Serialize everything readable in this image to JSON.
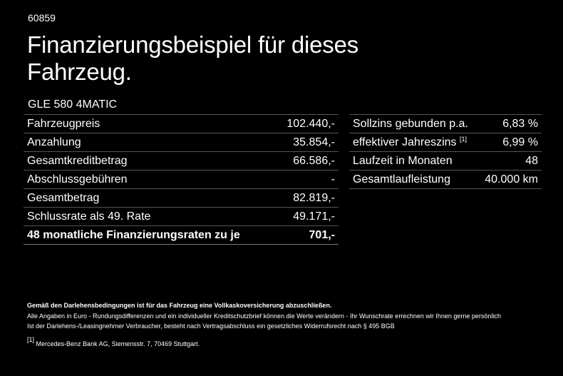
{
  "code": "60859",
  "headline": "Finanzierungsbeispiel für dieses Fahrzeug.",
  "model": "GLE 580 4MATIC",
  "left_rows": [
    {
      "label": "Fahrzeugpreis",
      "value": "102.440,-"
    },
    {
      "label": "Anzahlung",
      "value": "35.854,-"
    },
    {
      "label": "Gesamtkreditbetrag",
      "value": "66.586,-"
    },
    {
      "label": "Abschlussgebühren",
      "value": "-"
    },
    {
      "label": "Gesamtbetrag",
      "value": "82.819,-"
    },
    {
      "label": "Schlussrate als 49. Rate",
      "value": "49.171,-"
    },
    {
      "label": "48 monatliche Finanzierungsraten zu je",
      "value": "701,-"
    }
  ],
  "right_rows": [
    {
      "label": "Sollzins gebunden p.a.",
      "sup": "",
      "value": "6,83 %"
    },
    {
      "label": "effektiver Jahreszins",
      "sup": "[1]",
      "value": "6,99 %"
    },
    {
      "label": "Laufzeit in Monaten",
      "sup": "",
      "value": "48"
    },
    {
      "label": "Gesamtlaufleistung",
      "sup": "",
      "value": "40.000 km"
    }
  ],
  "footer": {
    "line1": "Gemäß den Darlehensbedingungen ist für das Fahrzeug eine Vollkaskoversicherung abzuschließen.",
    "line2": "Alle Angaben in Euro - Rundungsdifferenzen und ein individueller Kreditschutzbrief können die Werte verändern - Ihr Wunschrate errechnen wir Ihnen gerne persönlich",
    "line3": "Ist der Darlehens-/Leasingnehmer Verbraucher, besteht nach Vertragsabschluss ein gesetzliches Widerrufsrecht nach § 495 BGB",
    "note_mark": "[1]",
    "note_text": "Mercedes-Benz Bank AG, Siemensstr. 7, 70469 Stuttgart."
  }
}
